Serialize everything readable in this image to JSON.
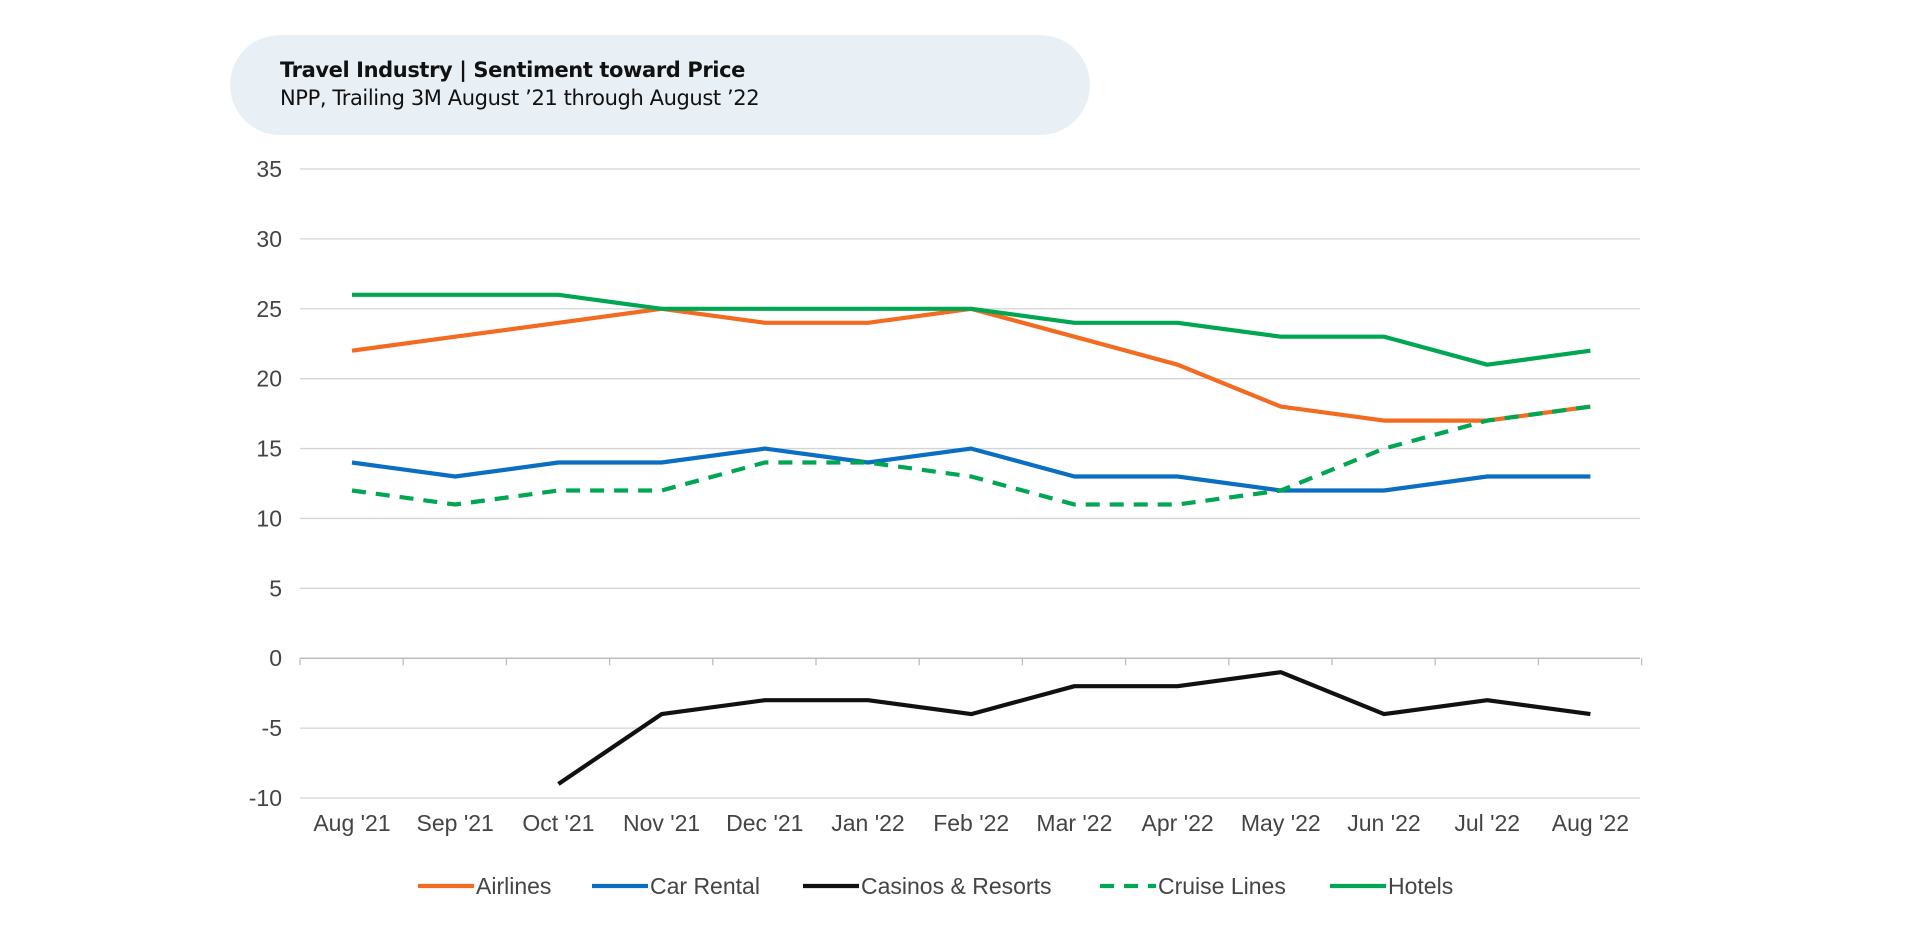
{
  "header": {
    "title": "Travel Industry | Sentiment toward Price",
    "subtitle": "NPP, Trailing 3M August ’21 through August ’22"
  },
  "chart_data": {
    "type": "line",
    "title": "Travel Industry | Sentiment toward Price",
    "subtitle": "NPP, Trailing 3M August ’21 through August ’22",
    "xlabel": "",
    "ylabel": "",
    "categories": [
      "Aug '21",
      "Sep '21",
      "Oct '21",
      "Nov '21",
      "Dec '21",
      "Jan '22",
      "Feb '22",
      "Mar '22",
      "Apr '22",
      "May '22",
      "Jun '22",
      "Jul '22",
      "Aug '22"
    ],
    "ylim": [
      -10,
      35
    ],
    "yticks": [
      35,
      30,
      25,
      20,
      15,
      10,
      5,
      0,
      -5,
      -10
    ],
    "grid": true,
    "legend_position": "bottom",
    "series": [
      {
        "name": "Airlines",
        "color": "#f26b21",
        "dash": false,
        "values": [
          22,
          23,
          24,
          25,
          24,
          24,
          25,
          23,
          21,
          18,
          17,
          17,
          18
        ]
      },
      {
        "name": "Car Rental",
        "color": "#0a6fc2",
        "dash": false,
        "values": [
          14,
          13,
          14,
          14,
          15,
          14,
          15,
          13,
          13,
          12,
          12,
          13,
          13
        ]
      },
      {
        "name": "Casinos & Resorts",
        "color": "#111111",
        "dash": false,
        "values": [
          null,
          null,
          -9,
          -4,
          -3,
          -3,
          -4,
          -2,
          -2,
          -1,
          -4,
          -3,
          -4
        ]
      },
      {
        "name": "Cruise Lines",
        "color": "#00a651",
        "dash": true,
        "values": [
          12,
          11,
          12,
          12,
          14,
          14,
          13,
          11,
          11,
          12,
          15,
          17,
          18
        ]
      },
      {
        "name": "Hotels",
        "color": "#00a651",
        "dash": false,
        "values": [
          26,
          26,
          26,
          25,
          25,
          25,
          25,
          24,
          24,
          23,
          23,
          21,
          22
        ]
      }
    ]
  }
}
